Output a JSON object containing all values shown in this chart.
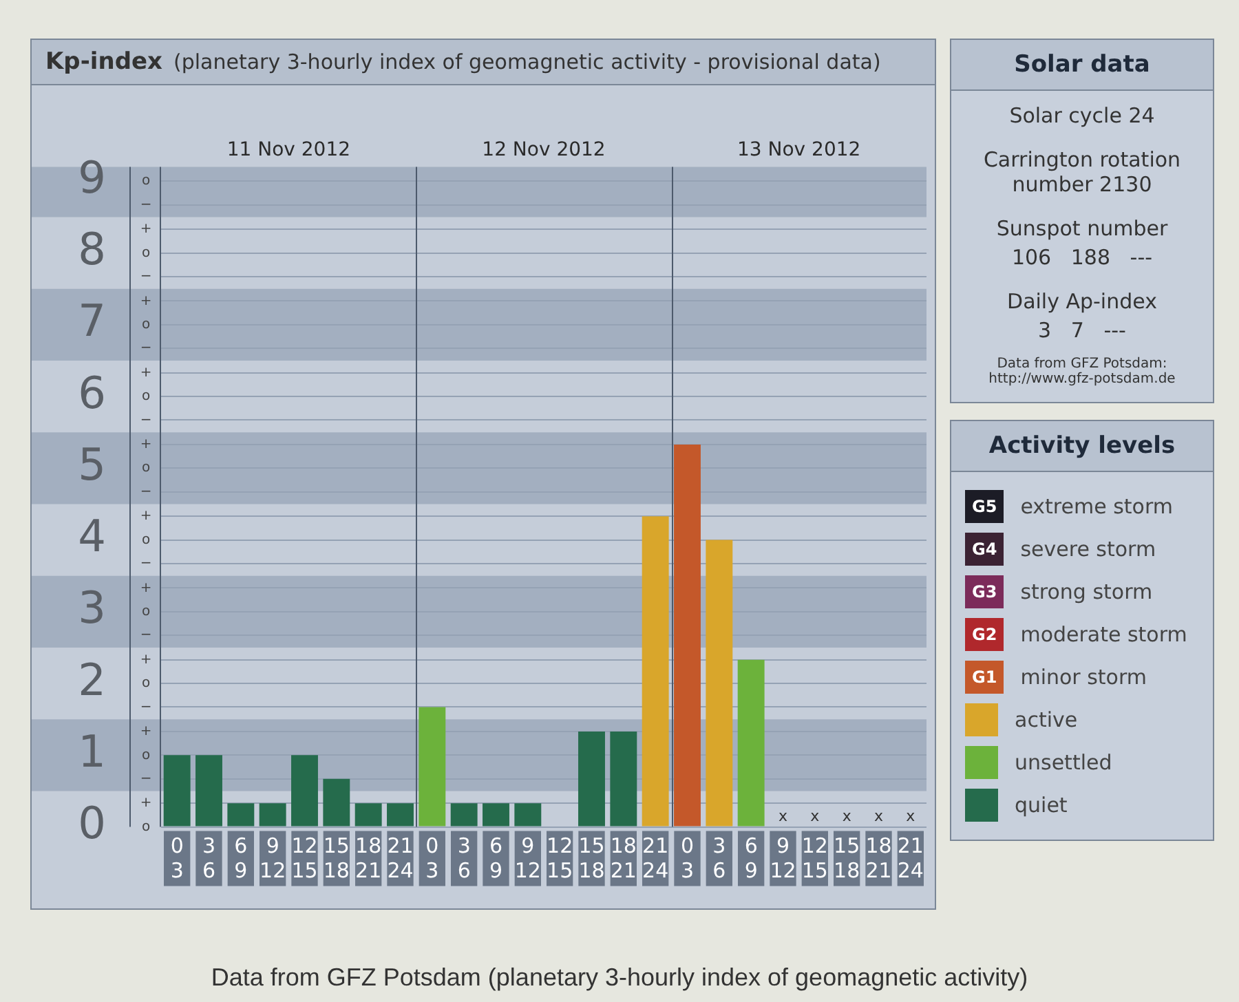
{
  "chart_data": [
    {
      "type": "bar",
      "title": "Kp-index",
      "subtitle": "(planetary 3-hourly index of geomagnetic activity - provisional data)",
      "categories": [
        "0\n3",
        "3\n6",
        "6\n9",
        "9\n12",
        "12\n15",
        "15\n18",
        "18\n21",
        "21\n24",
        "0\n3",
        "3\n6",
        "6\n9",
        "9\n12",
        "12\n15",
        "15\n18",
        "18\n21",
        "21\n24",
        "0\n3",
        "3\n6",
        "6\n9",
        "9\n12",
        "12\n15",
        "15\n18",
        "18\n21",
        "21\n24"
      ],
      "series": [
        {
          "name": "G5 extreme storm",
          "color": "#1c1c26",
          "values": [
            null,
            null,
            null,
            null,
            null,
            null,
            null,
            null,
            null,
            null,
            null,
            null,
            null,
            null,
            null,
            null,
            null,
            null,
            null,
            null,
            null,
            null,
            null,
            null
          ]
        },
        {
          "name": "G4 severe storm",
          "color": "#3b2233",
          "values": [
            null,
            null,
            null,
            null,
            null,
            null,
            null,
            null,
            null,
            null,
            null,
            null,
            null,
            null,
            null,
            null,
            null,
            null,
            null,
            null,
            null,
            null,
            null,
            null
          ]
        },
        {
          "name": "G3 strong storm",
          "color": "#7c2b5a",
          "values": [
            null,
            null,
            null,
            null,
            null,
            null,
            null,
            null,
            null,
            null,
            null,
            null,
            null,
            null,
            null,
            null,
            null,
            null,
            null,
            null,
            null,
            null,
            null,
            null
          ]
        },
        {
          "name": "G2 moderate storm",
          "color": "#b0282c",
          "values": [
            null,
            null,
            null,
            null,
            null,
            null,
            null,
            null,
            null,
            null,
            null,
            null,
            null,
            null,
            null,
            null,
            null,
            null,
            null,
            null,
            null,
            null,
            null,
            null
          ]
        },
        {
          "name": "G1 minor storm",
          "color": "#c4582a",
          "values": [
            null,
            null,
            null,
            null,
            null,
            null,
            null,
            null,
            null,
            null,
            null,
            null,
            null,
            null,
            null,
            null,
            5.33,
            null,
            null,
            null,
            null,
            null,
            null,
            null
          ]
        },
        {
          "name": "active",
          "color": "#d9a62b",
          "values": [
            null,
            null,
            null,
            null,
            null,
            null,
            null,
            null,
            null,
            null,
            null,
            null,
            null,
            null,
            null,
            4.33,
            null,
            4,
            null,
            null,
            null,
            null,
            null,
            null
          ]
        },
        {
          "name": "unsettled",
          "color": "#6cb23b",
          "values": [
            null,
            null,
            null,
            null,
            null,
            null,
            null,
            null,
            1.67,
            null,
            null,
            null,
            null,
            null,
            null,
            null,
            null,
            null,
            2.33,
            null,
            null,
            null,
            null,
            null
          ]
        },
        {
          "name": "quiet",
          "color": "#256b4c",
          "values": [
            1,
            1,
            0.33,
            0.33,
            1,
            0.67,
            0.33,
            0.33,
            null,
            0.33,
            0.33,
            0.33,
            0,
            1.33,
            1.33,
            null,
            null,
            null,
            null,
            null,
            null,
            null,
            null,
            null
          ],
          "value_labels": [
            null,
            null,
            null,
            null,
            null,
            null,
            null,
            null,
            null,
            null,
            null,
            null,
            null,
            null,
            null,
            null,
            null,
            null,
            null,
            "x",
            "x",
            "x",
            "x",
            "x"
          ]
        }
      ],
      "ylim": [
        0,
        9.2
      ],
      "yticks": [
        0,
        {
          "value": 0.33,
          "label": null
        },
        {
          "value": 0.67,
          "label": null
        },
        1,
        {
          "value": 1.33,
          "label": null
        },
        {
          "value": 1.67,
          "label": null
        },
        2,
        {
          "value": 2.33,
          "label": null
        },
        {
          "value": 2.67,
          "label": null
        },
        3,
        {
          "value": 3.33,
          "label": null
        },
        {
          "value": 3.67,
          "label": null
        },
        4,
        {
          "value": 4.33,
          "label": null
        },
        {
          "value": 4.67,
          "label": null
        },
        5,
        {
          "value": 5.33,
          "label": null
        },
        {
          "value": 5.67,
          "label": null
        },
        6,
        {
          "value": 6.33,
          "label": null
        },
        {
          "value": 6.67,
          "label": null
        },
        7,
        {
          "value": 7.33,
          "label": null
        },
        {
          "value": 7.67,
          "label": null
        },
        8,
        {
          "value": 8.33,
          "label": null
        },
        {
          "value": 8.67,
          "label": null
        },
        9
      ],
      "bands": [
        {
          "axis": "y",
          "from": 0.5,
          "to": 1.5,
          "color": "#a3afc0"
        },
        {
          "axis": "y",
          "from": 2.5,
          "to": 3.5,
          "color": "#a3afc0"
        },
        {
          "axis": "y",
          "from": 4.5,
          "to": 5.5,
          "color": "#a3afc0"
        },
        {
          "axis": "y",
          "from": 6.5,
          "to": 7.5,
          "color": "#a3afc0"
        },
        {
          "axis": "y",
          "from": 8.5,
          "to": 9.2,
          "color": "#a3afc0"
        }
      ],
      "grid": "y",
      "legend": "right",
      "legend_title": "Activity levels",
      "annotations": [
        "o",
        "+",
        "−",
        "o",
        "+",
        "−",
        "o",
        "+",
        "−",
        "o",
        "+",
        "−",
        "o",
        "+",
        "−",
        "o",
        "+",
        "−",
        "o",
        "+",
        "−",
        "o",
        "+",
        "−",
        "o",
        "+",
        "−",
        "o",
        "11 Nov 2012",
        "12 Nov 2012",
        "13 Nov 2012",
        "Data from GFZ Potsdam (planetary 3-hourly index of geomagnetic activity)"
      ]
    },
    {
      "type": "other",
      "title": "Solar data",
      "annotations": [
        "Solar cycle 24",
        "Carrington rotation number 2130",
        "Sunspot number",
        "106   188   ---",
        "Daily Ap-index",
        "3   7   ---",
        "Data from GFZ Potsdam: http://www.gfz-potsdam.de"
      ]
    }
  ]
}
